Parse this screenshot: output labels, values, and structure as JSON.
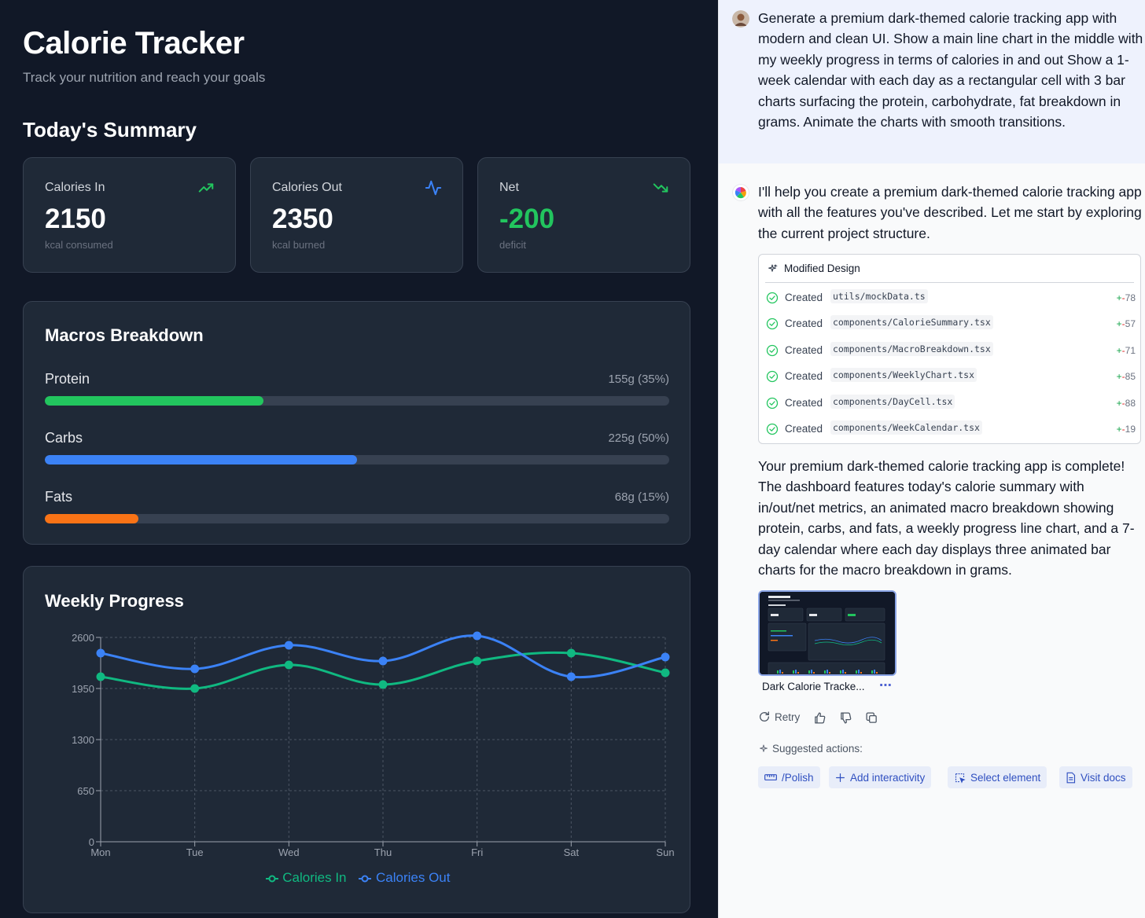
{
  "app": {
    "title": "Calorie Tracker",
    "subtitle": "Track your nutrition and reach your goals",
    "summary_title": "Today's Summary",
    "cards": [
      {
        "label": "Calories In",
        "value": "2150",
        "sub": "kcal consumed",
        "icon": "trending-up-icon",
        "icon_color": "#22c55e",
        "value_color": "#ffffff"
      },
      {
        "label": "Calories Out",
        "value": "2350",
        "sub": "kcal burned",
        "icon": "activity-icon",
        "icon_color": "#3b82f6",
        "value_color": "#ffffff"
      },
      {
        "label": "Net",
        "value": "-200",
        "sub": "deficit",
        "icon": "trending-down-icon",
        "icon_color": "#22c55e",
        "value_color": "#22c55e"
      }
    ],
    "macros": {
      "title": "Macros Breakdown",
      "items": [
        {
          "name": "Protein",
          "value": "155g (35%)",
          "percent": 35,
          "color": "#22c55e"
        },
        {
          "name": "Carbs",
          "value": "225g (50%)",
          "percent": 50,
          "color": "#3b82f6"
        },
        {
          "name": "Fats",
          "value": "68g (15%)",
          "percent": 15,
          "color": "#f97316"
        }
      ]
    },
    "weekly": {
      "title": "Weekly Progress"
    }
  },
  "chart_data": {
    "type": "line",
    "title": "Weekly Progress",
    "categories": [
      "Mon",
      "Tue",
      "Wed",
      "Thu",
      "Fri",
      "Sat",
      "Sun"
    ],
    "yticks": [
      0,
      650,
      1300,
      1950,
      2600
    ],
    "ylim": [
      0,
      2600
    ],
    "grid": true,
    "legend_position": "bottom",
    "series": [
      {
        "name": "Calories In",
        "color": "#10b981",
        "values": [
          2100,
          1950,
          2250,
          2000,
          2300,
          2400,
          2150
        ]
      },
      {
        "name": "Calories Out",
        "color": "#3b82f6",
        "values": [
          2400,
          2200,
          2500,
          2300,
          2620,
          2100,
          2350
        ]
      }
    ]
  },
  "chat": {
    "user_message": "Generate a premium dark-themed calorie tracking app with modern and clean UI. Show a main line chart in the middle with my weekly progress in terms of calories in and out Show a 1-week calendar with each day as a rectangular cell with 3 bar charts surfacing the protein, carbohydrate, fat breakdown in grams. Animate the charts with smooth transitions.",
    "assistant_intro": "I'll help you create a premium dark-themed calorie tracking app with all the features you've described. Let me start by exploring the current project structure.",
    "modified_title": "Modified Design",
    "files": [
      {
        "verb": "Created",
        "path": "utils/mockData.ts",
        "diff": "78"
      },
      {
        "verb": "Created",
        "path": "components/CalorieSummary.tsx",
        "diff": "57"
      },
      {
        "verb": "Created",
        "path": "components/MacroBreakdown.tsx",
        "diff": "71"
      },
      {
        "verb": "Created",
        "path": "components/WeeklyChart.tsx",
        "diff": "85"
      },
      {
        "verb": "Created",
        "path": "components/DayCell.tsx",
        "diff": "88"
      },
      {
        "verb": "Created",
        "path": "components/WeekCalendar.tsx",
        "diff": "19"
      }
    ],
    "diff_plus": "+",
    "diff_minus": "-",
    "assistant_summary": "Your premium dark-themed calorie tracking app is complete! The dashboard features today's calorie summary with in/out/net metrics, an animated macro breakdown showing protein, carbs, and fats, a weekly progress line chart, and a 7-day calendar where each day displays three animated bar charts for the macro breakdown in grams.",
    "thumbnail_caption": "Dark Calorie Tracke...",
    "more_label": "⋯",
    "retry_label": "Retry",
    "suggested_label": "Suggested actions:",
    "chips": [
      {
        "label": "/Polish",
        "icon": "ruler-icon"
      },
      {
        "label": "Add interactivity",
        "icon": "plus-icon"
      },
      {
        "label": "Select element",
        "icon": "select-element-icon"
      },
      {
        "label": "Visit docs",
        "icon": "document-icon"
      }
    ]
  }
}
